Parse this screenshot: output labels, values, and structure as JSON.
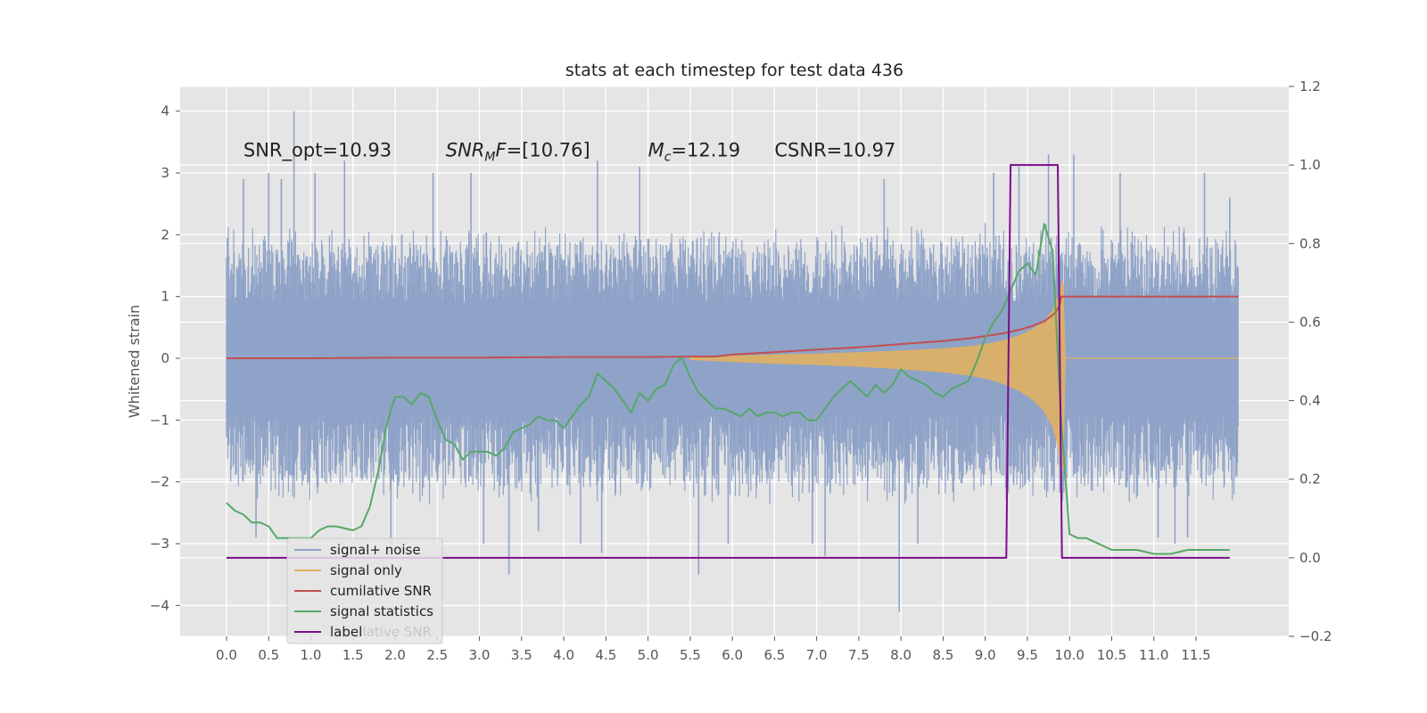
{
  "chart_data": {
    "type": "line",
    "title": "stats at each timestep for test data 436",
    "ylabel": "Whitened strain",
    "xlabel": "",
    "xlim": [
      -0.55,
      12.6
    ],
    "ylim": [
      -4.5,
      4.4
    ],
    "y2lim": [
      -0.2,
      1.2
    ],
    "x_ticks": [
      0.0,
      0.5,
      1.0,
      1.5,
      2.0,
      2.5,
      3.0,
      3.5,
      4.0,
      4.5,
      5.0,
      5.5,
      6.0,
      6.5,
      7.0,
      7.5,
      8.0,
      8.5,
      9.0,
      9.5,
      10.0,
      10.5,
      11.0,
      11.5
    ],
    "x_tick_labels": [
      "0.0",
      "0.5",
      "1.0",
      "1.5",
      "2.0",
      "2.5",
      "3.0",
      "3.5",
      "4.0",
      "4.5",
      "5.0",
      "5.5",
      "6.0",
      "6.5",
      "7.0",
      "7.5",
      "8.0",
      "8.5",
      "9.0",
      "9.5",
      "10.0",
      "10.5",
      "11.0",
      "11.5"
    ],
    "y_ticks": [
      -4,
      -3,
      -2,
      -1,
      0,
      1,
      2,
      3,
      4
    ],
    "y_tick_labels": [
      "−4",
      "−3",
      "−2",
      "−1",
      "0",
      "1",
      "2",
      "3",
      "4"
    ],
    "y2_ticks": [
      -0.2,
      0.0,
      0.2,
      0.4,
      0.6,
      0.8,
      1.0,
      1.2
    ],
    "y2_tick_labels": [
      "−0.2",
      "0.0",
      "0.2",
      "0.4",
      "0.6",
      "0.8",
      "1.0",
      "1.2"
    ],
    "grid": true,
    "legend_position": "lower-left",
    "annotations": [
      {
        "id": "snr-opt",
        "text": "SNR_opt=10.93",
        "x": 0.2,
        "y": 3.3
      },
      {
        "id": "snr-mf",
        "text": "SNR_MF=[10.76]",
        "x": 2.6,
        "y": 3.3
      },
      {
        "id": "chirp-mass",
        "text": "M_c=12.19",
        "x": 5.0,
        "y": 3.3
      },
      {
        "id": "csnr",
        "text": "CSNR=10.97",
        "x": 6.5,
        "y": 3.3
      }
    ],
    "series": [
      {
        "name": "signal+ noise",
        "axis": "left",
        "color": "#8fa3c8",
        "kind": "noise",
        "x_range": [
          0.0,
          12.0
        ],
        "band_low": [
          -1.9,
          -1.4
        ],
        "band_high": [
          1.7,
          2.2
        ],
        "spikes": [
          {
            "x": 0.2,
            "y": 2.9
          },
          {
            "x": 0.35,
            "y": -2.9
          },
          {
            "x": 0.5,
            "y": 3.0
          },
          {
            "x": 0.65,
            "y": 2.9
          },
          {
            "x": 0.8,
            "y": 4.0
          },
          {
            "x": 1.05,
            "y": 3.0
          },
          {
            "x": 1.4,
            "y": 3.2
          },
          {
            "x": 1.95,
            "y": -3.0
          },
          {
            "x": 2.45,
            "y": 3.0
          },
          {
            "x": 2.9,
            "y": 3.0
          },
          {
            "x": 3.05,
            "y": -3.0
          },
          {
            "x": 3.35,
            "y": -3.5
          },
          {
            "x": 3.7,
            "y": -2.8
          },
          {
            "x": 4.2,
            "y": -3.0
          },
          {
            "x": 4.4,
            "y": 3.2
          },
          {
            "x": 4.45,
            "y": -3.15
          },
          {
            "x": 4.9,
            "y": 3.1
          },
          {
            "x": 5.6,
            "y": -3.5
          },
          {
            "x": 5.95,
            "y": -3.0
          },
          {
            "x": 6.95,
            "y": -3.0
          },
          {
            "x": 7.1,
            "y": -3.2
          },
          {
            "x": 7.8,
            "y": 2.9
          },
          {
            "x": 7.98,
            "y": -4.1
          },
          {
            "x": 8.2,
            "y": -3.0
          },
          {
            "x": 9.1,
            "y": 3.0
          },
          {
            "x": 9.4,
            "y": 3.1
          },
          {
            "x": 9.75,
            "y": 3.3
          },
          {
            "x": 10.05,
            "y": 3.3
          },
          {
            "x": 10.6,
            "y": 3.0
          },
          {
            "x": 11.05,
            "y": -2.9
          },
          {
            "x": 11.25,
            "y": -3.0
          },
          {
            "x": 11.4,
            "y": -2.9
          },
          {
            "x": 11.6,
            "y": 3.0
          },
          {
            "x": 11.9,
            "y": 2.6
          }
        ]
      },
      {
        "name": "signal only",
        "axis": "left",
        "color": "#e0b060",
        "kind": "chirp",
        "x": [
          5.5,
          6.0,
          6.5,
          7.0,
          7.5,
          8.0,
          8.5,
          8.8,
          9.0,
          9.2,
          9.4,
          9.55,
          9.7,
          9.8,
          9.88,
          9.92,
          9.95,
          12.0
        ],
        "amplitude": [
          0.02,
          0.05,
          0.08,
          0.1,
          0.13,
          0.17,
          0.22,
          0.27,
          0.32,
          0.4,
          0.52,
          0.65,
          0.85,
          1.1,
          1.5,
          1.8,
          0.0,
          0.0
        ]
      },
      {
        "name": "cumilative SNR",
        "axis": "left",
        "color": "#c44e52",
        "x": [
          0.0,
          1.0,
          2.0,
          3.0,
          4.0,
          5.0,
          5.5,
          5.8,
          6.0,
          6.5,
          7.0,
          7.5,
          8.0,
          8.5,
          8.8,
          9.0,
          9.2,
          9.4,
          9.55,
          9.7,
          9.8,
          9.85,
          9.88,
          9.9,
          12.0
        ],
        "y": [
          0.0,
          0.0,
          0.01,
          0.01,
          0.02,
          0.02,
          0.03,
          0.03,
          0.06,
          0.1,
          0.14,
          0.18,
          0.23,
          0.28,
          0.32,
          0.36,
          0.4,
          0.46,
          0.52,
          0.6,
          0.7,
          0.78,
          0.85,
          1.0,
          1.0
        ]
      },
      {
        "name": "signal statistics",
        "axis": "right",
        "color": "#55a868",
        "x": [
          0.0,
          0.1,
          0.2,
          0.3,
          0.4,
          0.5,
          0.6,
          0.8,
          1.0,
          1.1,
          1.2,
          1.3,
          1.5,
          1.6,
          1.7,
          1.8,
          1.9,
          2.0,
          2.1,
          2.2,
          2.3,
          2.4,
          2.5,
          2.6,
          2.7,
          2.8,
          2.9,
          3.0,
          3.1,
          3.2,
          3.3,
          3.4,
          3.5,
          3.6,
          3.7,
          3.8,
          3.9,
          4.0,
          4.1,
          4.2,
          4.3,
          4.4,
          4.5,
          4.6,
          4.7,
          4.8,
          4.9,
          5.0,
          5.1,
          5.2,
          5.3,
          5.4,
          5.5,
          5.6,
          5.7,
          5.8,
          5.9,
          6.0,
          6.1,
          6.2,
          6.3,
          6.4,
          6.5,
          6.6,
          6.7,
          6.8,
          6.9,
          7.0,
          7.1,
          7.2,
          7.3,
          7.4,
          7.5,
          7.6,
          7.7,
          7.8,
          7.9,
          8.0,
          8.1,
          8.2,
          8.3,
          8.4,
          8.5,
          8.6,
          8.7,
          8.8,
          8.9,
          9.0,
          9.1,
          9.2,
          9.3,
          9.4,
          9.5,
          9.6,
          9.7,
          9.8,
          9.9,
          10.0,
          10.1,
          10.2,
          10.3,
          10.5,
          10.8,
          11.0,
          11.2,
          11.4,
          11.6,
          11.7,
          11.9
        ],
        "y": [
          0.14,
          0.12,
          0.11,
          0.09,
          0.09,
          0.08,
          0.05,
          0.05,
          0.05,
          0.07,
          0.08,
          0.08,
          0.07,
          0.08,
          0.13,
          0.22,
          0.34,
          0.41,
          0.41,
          0.39,
          0.42,
          0.41,
          0.35,
          0.3,
          0.29,
          0.25,
          0.27,
          0.27,
          0.27,
          0.26,
          0.28,
          0.32,
          0.33,
          0.34,
          0.36,
          0.35,
          0.35,
          0.33,
          0.36,
          0.39,
          0.41,
          0.47,
          0.45,
          0.43,
          0.4,
          0.37,
          0.42,
          0.4,
          0.43,
          0.44,
          0.49,
          0.51,
          0.46,
          0.42,
          0.4,
          0.38,
          0.38,
          0.37,
          0.36,
          0.38,
          0.36,
          0.37,
          0.37,
          0.36,
          0.37,
          0.37,
          0.35,
          0.35,
          0.38,
          0.41,
          0.43,
          0.45,
          0.43,
          0.41,
          0.44,
          0.42,
          0.44,
          0.48,
          0.46,
          0.45,
          0.44,
          0.42,
          0.41,
          0.43,
          0.44,
          0.45,
          0.5,
          0.56,
          0.6,
          0.63,
          0.68,
          0.73,
          0.75,
          0.72,
          0.85,
          0.78,
          0.35,
          0.06,
          0.05,
          0.05,
          0.04,
          0.02,
          0.02,
          0.01,
          0.01,
          0.02,
          0.02,
          0.02,
          0.02
        ]
      },
      {
        "name": "label",
        "axis": "right",
        "color": "#7b0c8c",
        "x": [
          0.0,
          9.25,
          9.3,
          9.86,
          9.91,
          11.9
        ],
        "y": [
          0.0,
          0.0,
          1.0,
          1.0,
          0.0,
          0.0
        ]
      }
    ],
    "legend": [
      "signal+ noise",
      "signal only",
      "cumilative SNR",
      "signal statistics",
      "label"
    ],
    "legend_overlap_label": "cumilative SNR"
  }
}
